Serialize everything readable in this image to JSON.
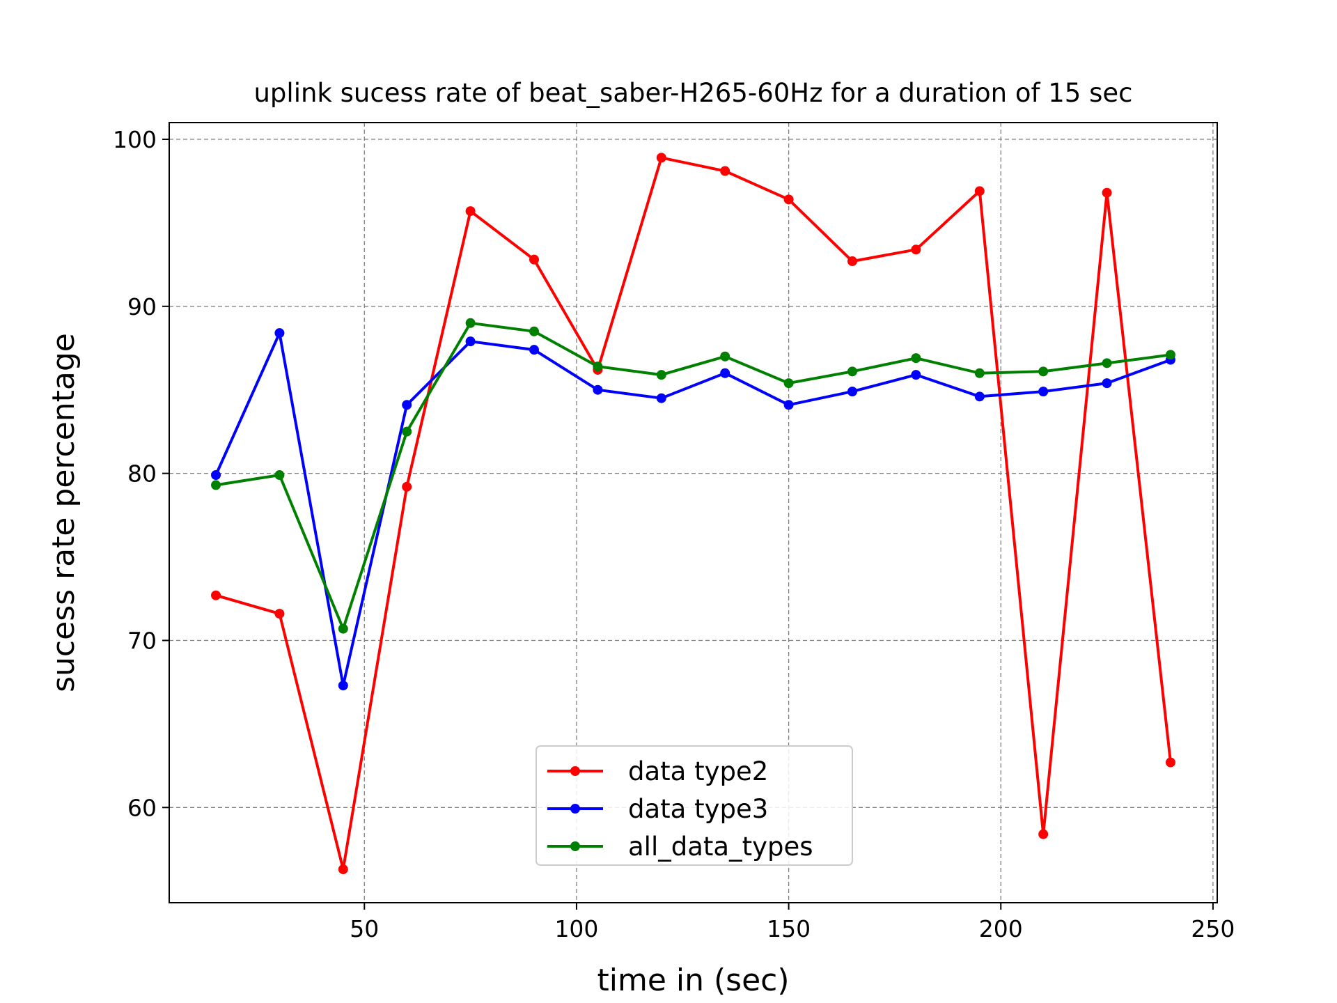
{
  "chart_data": {
    "type": "line",
    "title": "uplink sucess rate of beat_saber-H265-60Hz for a duration of 15 sec",
    "xlabel": "time in (sec)",
    "ylabel": "sucess rate percentage",
    "xlim": [
      4,
      251
    ],
    "ylim": [
      54.3,
      101.0
    ],
    "xticks": [
      50,
      100,
      150,
      200,
      250
    ],
    "yticks": [
      60,
      70,
      80,
      90,
      100
    ],
    "grid": true,
    "legend_position": "lower center",
    "x": [
      15,
      30,
      45,
      60,
      75,
      90,
      105,
      120,
      135,
      150,
      165,
      180,
      195,
      210,
      225,
      240
    ],
    "series": [
      {
        "name": "data type2",
        "color": "#ff0000",
        "values": [
          72.7,
          71.6,
          56.3,
          79.2,
          95.7,
          92.8,
          86.2,
          98.9,
          98.1,
          96.4,
          92.7,
          93.4,
          96.9,
          58.4,
          96.8,
          62.7
        ]
      },
      {
        "name": "data type3",
        "color": "#0000ff",
        "values": [
          79.9,
          88.4,
          67.3,
          84.1,
          87.9,
          87.4,
          85.0,
          84.5,
          86.0,
          84.1,
          84.9,
          85.9,
          84.6,
          84.9,
          85.4,
          86.8
        ]
      },
      {
        "name": "all_data_types",
        "color": "#008000",
        "values": [
          79.3,
          79.9,
          70.7,
          82.5,
          89.0,
          88.5,
          86.4,
          85.9,
          87.0,
          85.4,
          86.1,
          86.9,
          86.0,
          86.1,
          86.6,
          87.1
        ]
      }
    ]
  }
}
